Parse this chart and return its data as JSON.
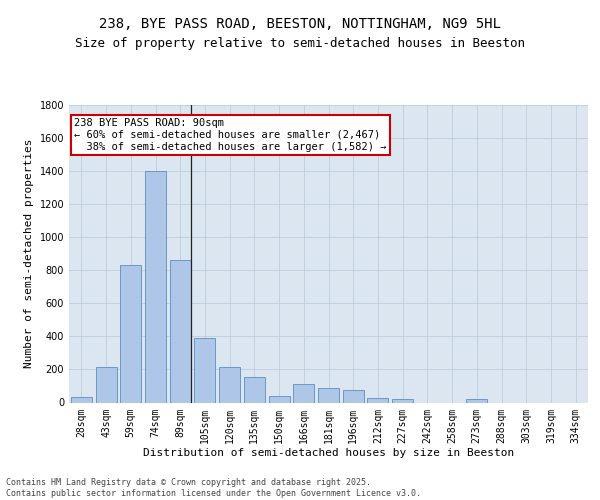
{
  "title1": "238, BYE PASS ROAD, BEESTON, NOTTINGHAM, NG9 5HL",
  "title2": "Size of property relative to semi-detached houses in Beeston",
  "xlabel": "Distribution of semi-detached houses by size in Beeston",
  "ylabel": "Number of semi-detached properties",
  "categories": [
    "28sqm",
    "43sqm",
    "59sqm",
    "74sqm",
    "89sqm",
    "105sqm",
    "120sqm",
    "135sqm",
    "150sqm",
    "166sqm",
    "181sqm",
    "196sqm",
    "212sqm",
    "227sqm",
    "242sqm",
    "258sqm",
    "273sqm",
    "288sqm",
    "303sqm",
    "319sqm",
    "334sqm"
  ],
  "values": [
    35,
    215,
    830,
    1400,
    860,
    390,
    215,
    155,
    40,
    110,
    90,
    75,
    30,
    20,
    0,
    0,
    20,
    0,
    0,
    0,
    0
  ],
  "bar_color": "#aec6e8",
  "bar_edge_color": "#5a8fc0",
  "highlight_index": 4,
  "highlight_line_color": "#222222",
  "annotation_text": "238 BYE PASS ROAD: 90sqm\n← 60% of semi-detached houses are smaller (2,467)\n  38% of semi-detached houses are larger (1,582) →",
  "annotation_box_facecolor": "#ffffff",
  "annotation_box_edgecolor": "#cc0000",
  "ylim": [
    0,
    1800
  ],
  "yticks": [
    0,
    200,
    400,
    600,
    800,
    1000,
    1200,
    1400,
    1600,
    1800
  ],
  "background_color": "#dce6f0",
  "grid_color": "#b8c8d8",
  "footer_text": "Contains HM Land Registry data © Crown copyright and database right 2025.\nContains public sector information licensed under the Open Government Licence v3.0.",
  "title1_fontsize": 10,
  "title2_fontsize": 9,
  "tick_fontsize": 7,
  "ylabel_fontsize": 8,
  "xlabel_fontsize": 8,
  "annot_fontsize": 7.5
}
